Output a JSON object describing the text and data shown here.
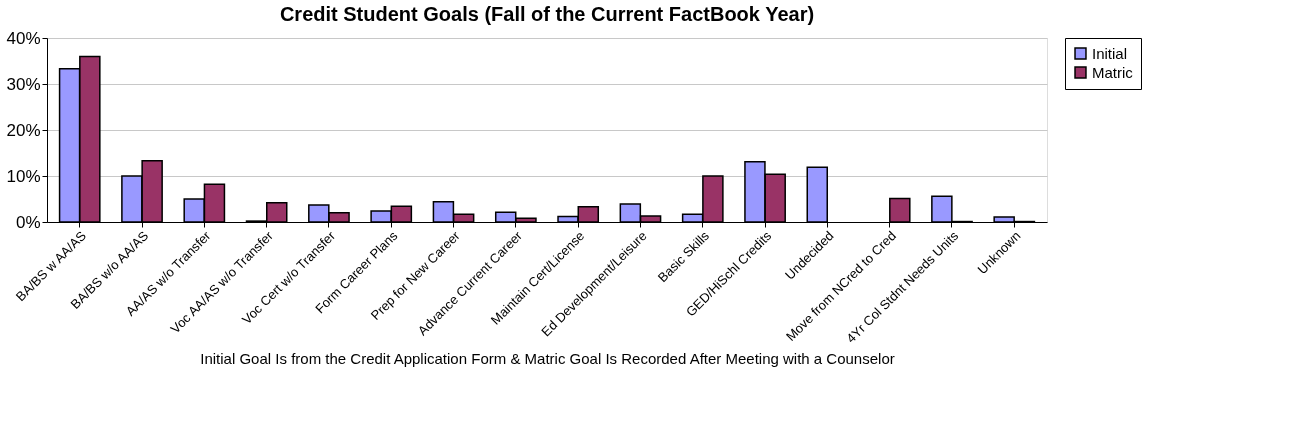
{
  "chart_data": {
    "type": "bar",
    "title": "Credit Student Goals (Fall of the Current FactBook Year)",
    "xlabel": "Initial Goal Is from the Credit Application Form  &  Matric Goal Is Recorded After Meeting with a Counselor",
    "categories": [
      "BA/BS w AA/AS",
      "BA/BS w/o AA/AS",
      "AA/AS w/o Transfer",
      "Voc AA/AS w/o Transfer",
      "Voc Cert w/o Transfer",
      "Form Career Plans",
      "Prep for New Career",
      "Advance Current Career",
      "Maintain Cert/License",
      "Ed Development/Leisure",
      "Basic Skills",
      "GED/HiSchl Credits",
      "Undecided",
      "Move from NCred to Cred",
      "4Yr Col Stdnt Needs Units",
      "Unknown"
    ],
    "series": [
      {
        "name": "Initial",
        "color": "#9999ff",
        "values": [
          33.3,
          10.0,
          5.0,
          0.2,
          3.7,
          2.4,
          4.4,
          2.1,
          1.2,
          3.9,
          1.7,
          13.1,
          11.9,
          null,
          5.6,
          1.1
        ]
      },
      {
        "name": "Matric",
        "color": "#993366",
        "values": [
          36.0,
          13.3,
          8.2,
          4.2,
          2.0,
          3.4,
          1.7,
          0.8,
          3.3,
          1.3,
          10.0,
          10.4,
          null,
          5.1,
          0.1,
          0.1
        ]
      }
    ],
    "ylim": [
      0,
      40
    ],
    "yticks": [
      {
        "value": 0,
        "label": "0%"
      },
      {
        "value": 10,
        "label": "10%"
      },
      {
        "value": 20,
        "label": "20%"
      },
      {
        "value": 30,
        "label": "30%"
      },
      {
        "value": 40,
        "label": "40%"
      }
    ],
    "grid": "y",
    "legend": "right"
  }
}
